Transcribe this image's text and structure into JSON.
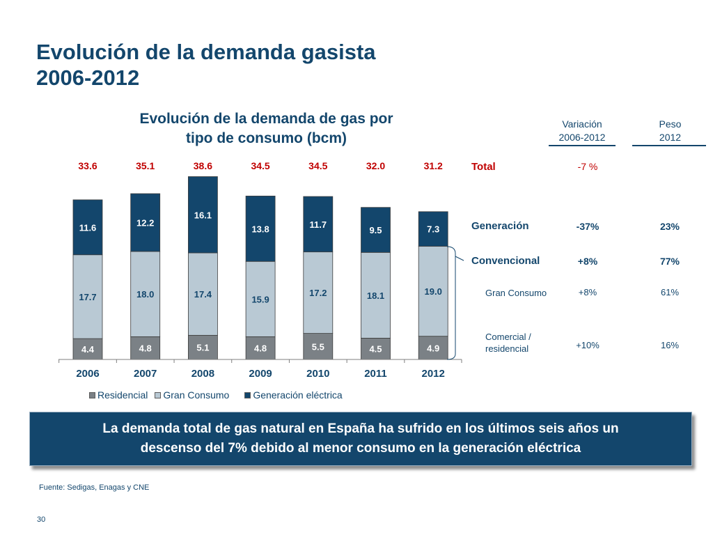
{
  "slide": {
    "title_line1": "Evolución de la demanda gasista",
    "title_line2": "2006-2012",
    "source": "Fuente: Sedigas, Enagas y CNE",
    "page_number": "30"
  },
  "chart_data": {
    "type": "bar",
    "stacked": true,
    "title": "Evolución  de la demanda de gas por tipo de consumo (bcm)",
    "title_line1": "Evolución  de la demanda de gas por",
    "title_line2": "tipo de consumo (bcm)",
    "categories": [
      "2006",
      "2007",
      "2008",
      "2009",
      "2010",
      "2011",
      "2012"
    ],
    "series": [
      {
        "name": "Residencial",
        "color": "#7b8186",
        "values": [
          4.4,
          4.8,
          5.1,
          4.8,
          5.5,
          4.5,
          4.9
        ]
      },
      {
        "name": "Gran Consumo",
        "color": "#b9c9d4",
        "values": [
          17.7,
          18.0,
          17.4,
          15.9,
          17.2,
          18.1,
          19.0
        ]
      },
      {
        "name": "Generación eléctrica",
        "color": "#13466c",
        "values": [
          11.6,
          12.2,
          16.1,
          13.8,
          11.7,
          9.5,
          7.3
        ]
      }
    ],
    "totals": [
      "33.6",
      "35.1",
      "38.6",
      "34.5",
      "34.5",
      "32.0",
      "31.2"
    ],
    "value_labels": {
      "Residencial": [
        "4.4",
        "4.8",
        "5.1",
        "4.8",
        "5.5",
        "4.5",
        "4.9"
      ],
      "Gran Consumo": [
        "17.7",
        "18.0",
        "17.4",
        "15.9",
        "17.2",
        "18.1",
        "19.0"
      ],
      "Generación eléctrica": [
        "11.6",
        "12.2",
        "16.1",
        "13.8",
        "11.7",
        "9.5",
        "7.3"
      ]
    },
    "ylim": [
      0,
      40
    ],
    "legend_position": "bottom",
    "grid": false
  },
  "table": {
    "col1_header_line1": "Variación",
    "col1_header_line2": "2006-2012",
    "col2_header_line1": "Peso",
    "col2_header_line2": "2012",
    "rows": {
      "total": {
        "label": "Total",
        "variacion": "-7 %",
        "peso": ""
      },
      "generacion": {
        "label": "Generación",
        "variacion": "-37%",
        "peso": "23%"
      },
      "convencional": {
        "label": "Convencional",
        "variacion": "+8%",
        "peso": "77%"
      },
      "gran_consumo": {
        "label": "Gran Consumo",
        "variacion": "+8%",
        "peso": "61%"
      },
      "comercial": {
        "label_line1": "Comercial /",
        "label_line2": "residencial",
        "variacion": "+10%",
        "peso": "16%"
      }
    }
  },
  "callout": {
    "line1": "La demanda total de gas natural en España ha sufrido en los últimos seis años un",
    "line2": "descenso del 7% debido al menor consumo en la generación eléctrica"
  },
  "colors": {
    "navy": "#13466c",
    "total_red": "#c00000",
    "residencial": "#7b8186",
    "gran_consumo": "#b9c9d4",
    "generacion": "#13466c"
  }
}
